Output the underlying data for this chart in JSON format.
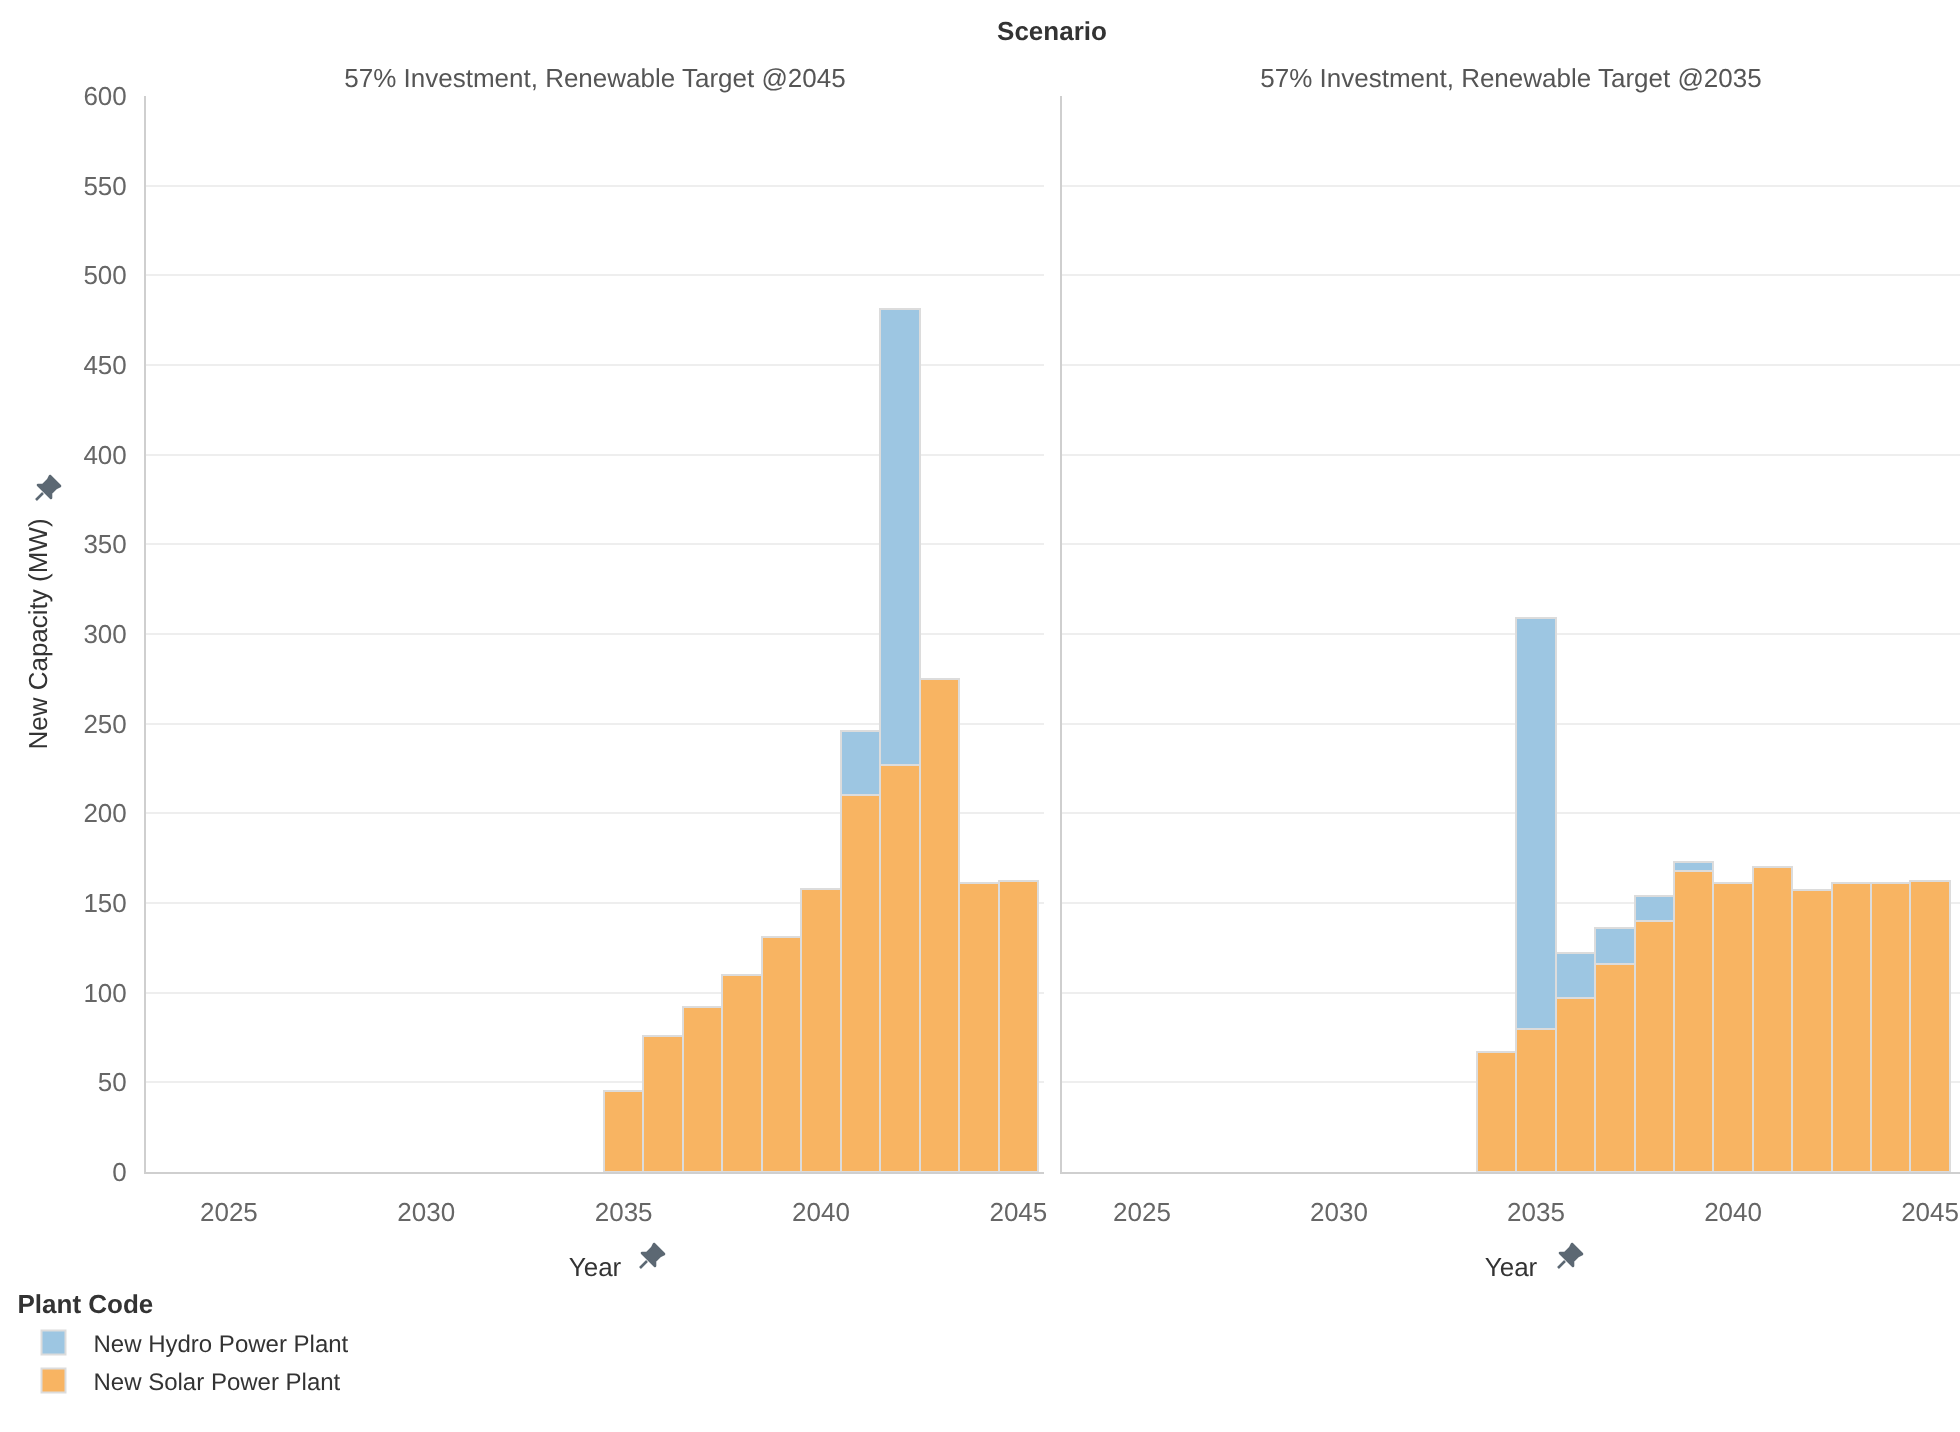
{
  "chart_data": [
    {
      "type": "bar",
      "title": "57% Investment, Renewable Target @2045",
      "xlabel": "Year",
      "ylabel": "New Capacity (MW)",
      "legend_title": "Plant Code",
      "annotations": [
        "Scenario"
      ],
      "stacked": true,
      "x": [
        2035,
        2036,
        2037,
        2038,
        2039,
        2040,
        2041,
        2042,
        2043,
        2044,
        2045
      ],
      "series": [
        {
          "name": "New Solar Power Plant",
          "color": "#f8b462",
          "values": [
            45,
            76,
            92,
            110,
            131,
            158,
            210,
            227,
            275,
            161,
            162
          ]
        },
        {
          "name": "New Hydro Power Plant",
          "color": "#9dc6e2",
          "values": [
            null,
            null,
            null,
            null,
            null,
            null,
            36,
            254,
            null,
            null,
            null
          ]
        }
      ],
      "xlim": [
        2022.9,
        2045.65
      ],
      "xticks": [
        2025,
        2030,
        2035,
        2040,
        2045
      ],
      "ylim": [
        0,
        600
      ],
      "yticks": [
        0,
        50,
        100,
        150,
        200,
        250,
        300,
        350,
        400,
        450,
        500,
        550,
        600
      ],
      "grid": "y",
      "legend": "bottom left"
    },
    {
      "type": "bar",
      "title": "57% Investment, Renewable Target @2035",
      "xlabel": "Year",
      "stacked": true,
      "x": [
        2034,
        2035,
        2036,
        2037,
        2038,
        2039,
        2040,
        2041,
        2042,
        2043,
        2044,
        2045
      ],
      "series": [
        {
          "color": "#f8b462",
          "values": [
            67,
            80,
            97,
            116,
            140,
            168,
            161,
            170,
            157,
            161,
            161,
            162
          ]
        },
        {
          "color": "#9dc6e2",
          "values": [
            null,
            229,
            25,
            20,
            14,
            5,
            null,
            null,
            null,
            null,
            null,
            null
          ]
        }
      ],
      "xlim": [
        2022.97,
        2045.76
      ],
      "xticks": [
        2025,
        2030,
        2035,
        2040,
        2045
      ],
      "ylim": [
        0,
        600
      ],
      "yticks": [
        0,
        50,
        100,
        150,
        200,
        250,
        300,
        350,
        400,
        450,
        500,
        550,
        600
      ],
      "grid": "y",
      "tick_labels": "x"
    }
  ]
}
